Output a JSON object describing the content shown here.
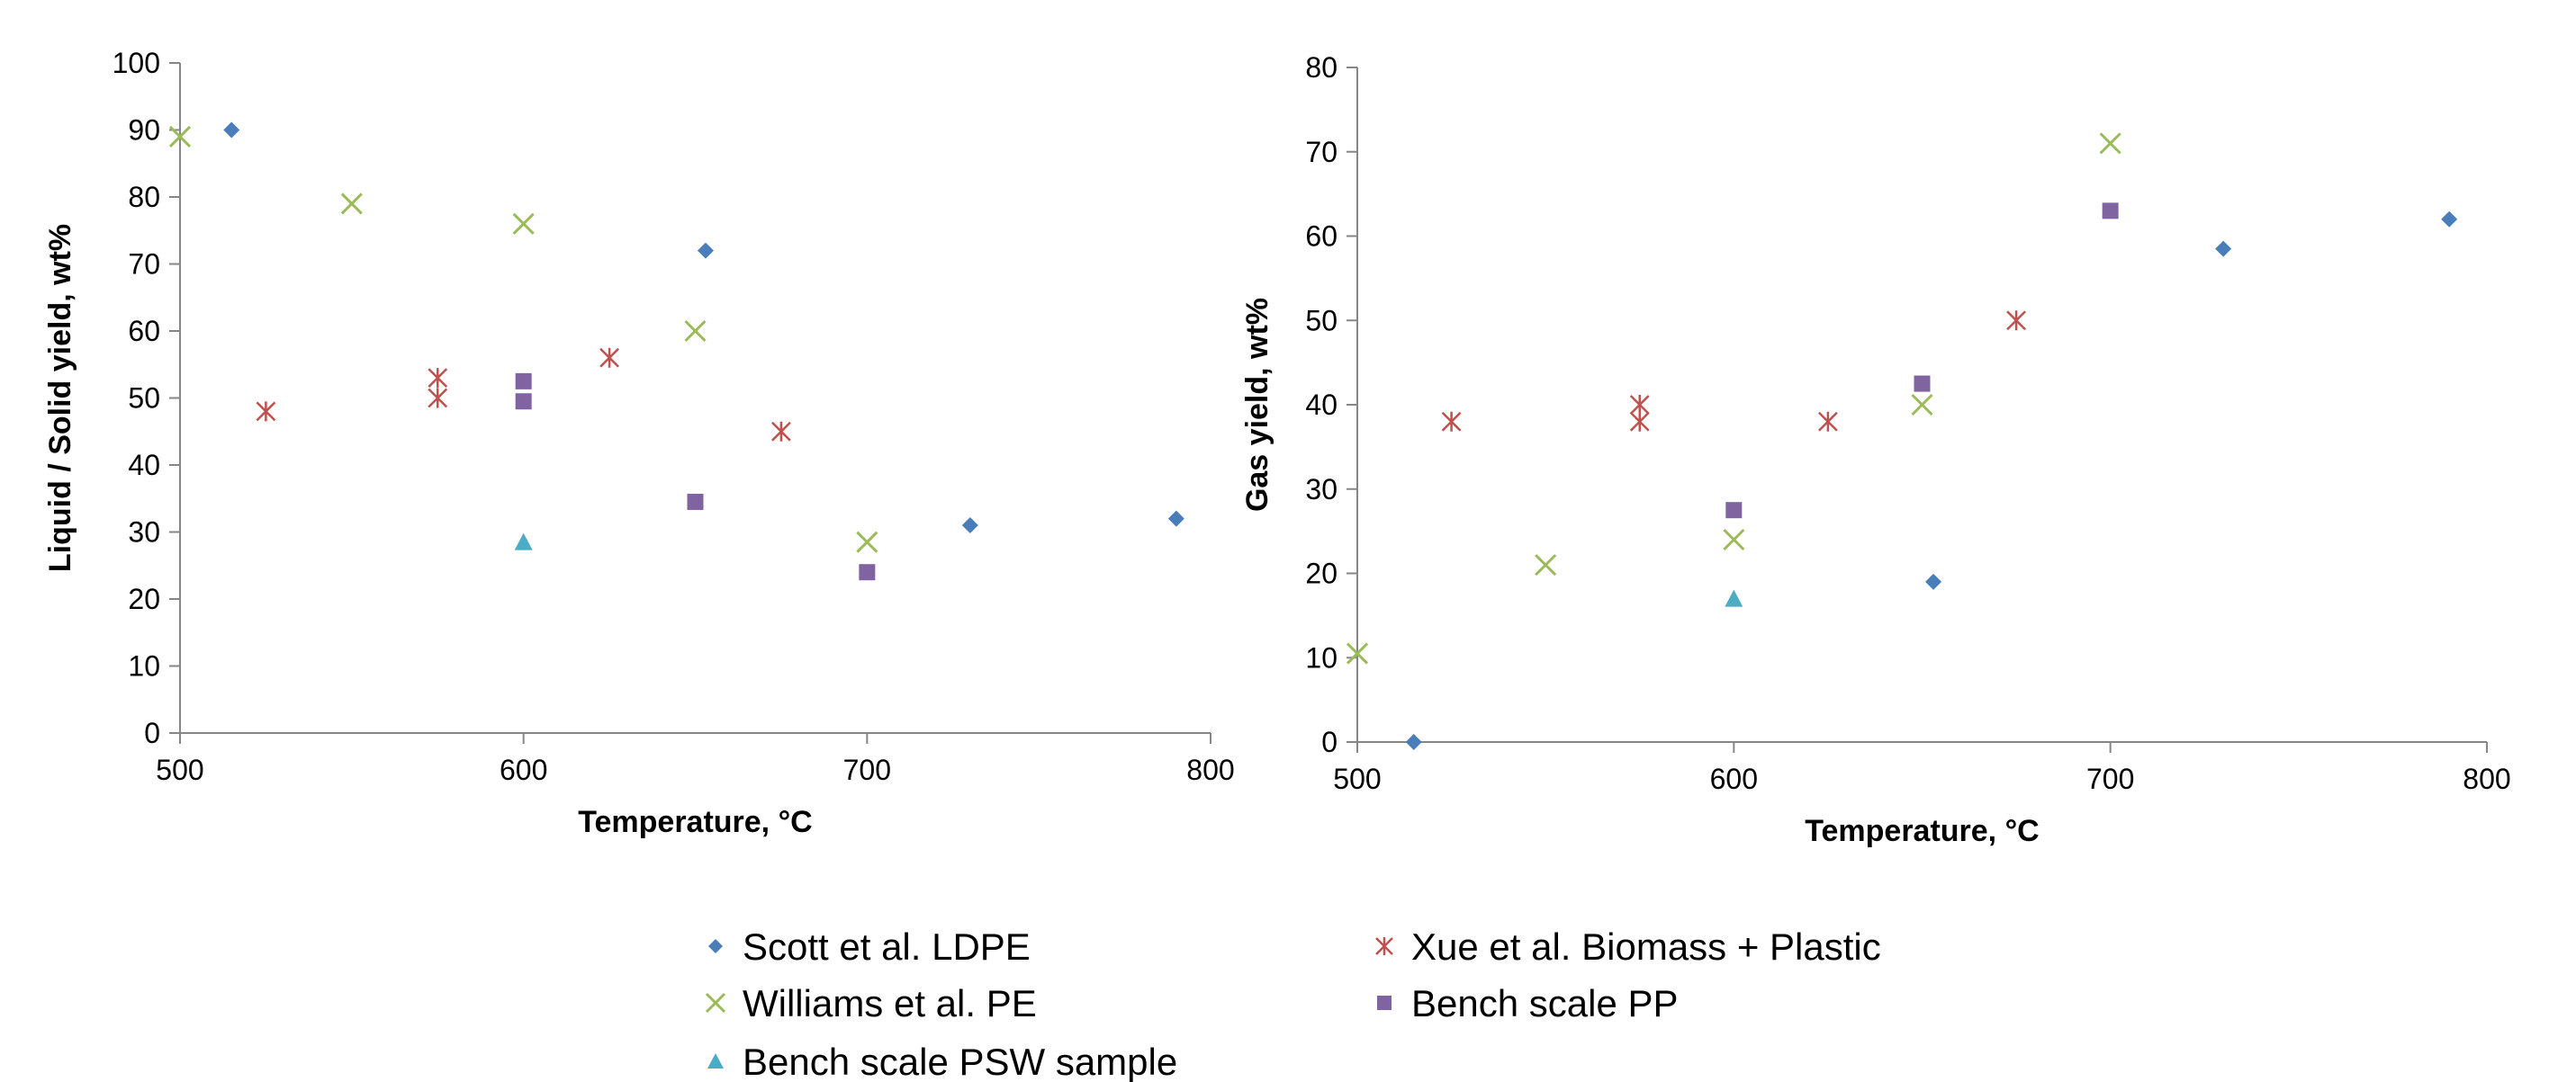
{
  "colors": {
    "scott": "#4a7ebb",
    "xue": "#c0504d",
    "williams": "#9bbb59",
    "bench_pp": "#8064a2",
    "bench_psw": "#4bacc6",
    "axis": "#868686"
  },
  "legend": [
    {
      "series": "scott",
      "label": "Scott et al. LDPE",
      "marker": "diamond"
    },
    {
      "series": "xue",
      "label": "Xue et al. Biomass + Plastic",
      "marker": "asterisk"
    },
    {
      "series": "williams",
      "label": "Williams et al. PE",
      "marker": "x"
    },
    {
      "series": "bench_pp",
      "label": "Bench scale PP",
      "marker": "square"
    },
    {
      "series": "bench_psw",
      "label": "Bench scale PSW sample",
      "marker": "triangle"
    }
  ],
  "chart_data": [
    {
      "type": "scatter",
      "title": "",
      "xlabel": "Temperature, °C",
      "ylabel": "Liquid / Solid yield, wt%",
      "xlim": [
        500,
        800
      ],
      "ylim": [
        0,
        100
      ],
      "xticks": [
        500,
        600,
        700,
        800
      ],
      "yticks": [
        0,
        10,
        20,
        30,
        40,
        50,
        60,
        70,
        80,
        90,
        100
      ],
      "grid": false,
      "series": [
        {
          "name": "Scott et al. LDPE",
          "key": "scott",
          "marker": "diamond",
          "points": [
            [
              515,
              90
            ],
            [
              653,
              72
            ],
            [
              730,
              31
            ],
            [
              790,
              32
            ]
          ]
        },
        {
          "name": "Xue et al. Biomass + Plastic",
          "key": "xue",
          "marker": "asterisk",
          "points": [
            [
              525,
              48
            ],
            [
              575,
              53
            ],
            [
              575,
              50
            ],
            [
              625,
              56
            ],
            [
              675,
              45
            ]
          ]
        },
        {
          "name": "Williams et al. PE",
          "key": "williams",
          "marker": "x",
          "points": [
            [
              500,
              89
            ],
            [
              550,
              79
            ],
            [
              600,
              76
            ],
            [
              650,
              60
            ],
            [
              700,
              28.5
            ]
          ]
        },
        {
          "name": "Bench scale PP",
          "key": "bench_pp",
          "marker": "square",
          "points": [
            [
              600,
              52.5
            ],
            [
              600,
              49.5
            ],
            [
              650,
              34.5
            ],
            [
              700,
              24
            ]
          ]
        },
        {
          "name": "Bench scale PSW sample",
          "key": "bench_psw",
          "marker": "triangle",
          "points": [
            [
              600,
              28.5
            ]
          ]
        }
      ]
    },
    {
      "type": "scatter",
      "title": "",
      "xlabel": "Temperature, °C",
      "ylabel": "Gas yield, wt%",
      "xlim": [
        500,
        800
      ],
      "ylim": [
        0,
        80
      ],
      "xticks": [
        500,
        600,
        700,
        800
      ],
      "yticks": [
        0,
        10,
        20,
        30,
        40,
        50,
        60,
        70,
        80
      ],
      "grid": false,
      "series": [
        {
          "name": "Scott et al. LDPE",
          "key": "scott",
          "marker": "diamond",
          "points": [
            [
              515,
              0
            ],
            [
              653,
              19
            ],
            [
              730,
              58.5
            ],
            [
              790,
              62
            ]
          ]
        },
        {
          "name": "Xue et al. Biomass + Plastic",
          "key": "xue",
          "marker": "asterisk",
          "points": [
            [
              525,
              38
            ],
            [
              575,
              40
            ],
            [
              575,
              38
            ],
            [
              625,
              38
            ],
            [
              675,
              50
            ]
          ]
        },
        {
          "name": "Williams et al. PE",
          "key": "williams",
          "marker": "x",
          "points": [
            [
              500,
              10.5
            ],
            [
              550,
              21
            ],
            [
              600,
              24
            ],
            [
              650,
              40
            ],
            [
              700,
              71
            ]
          ]
        },
        {
          "name": "Bench scale PP",
          "key": "bench_pp",
          "marker": "square",
          "points": [
            [
              600,
              27.5
            ],
            [
              650,
              42.5
            ],
            [
              700,
              63
            ]
          ]
        },
        {
          "name": "Bench scale PSW sample",
          "key": "bench_psw",
          "marker": "triangle",
          "points": [
            [
              600,
              17
            ]
          ]
        }
      ]
    }
  ]
}
